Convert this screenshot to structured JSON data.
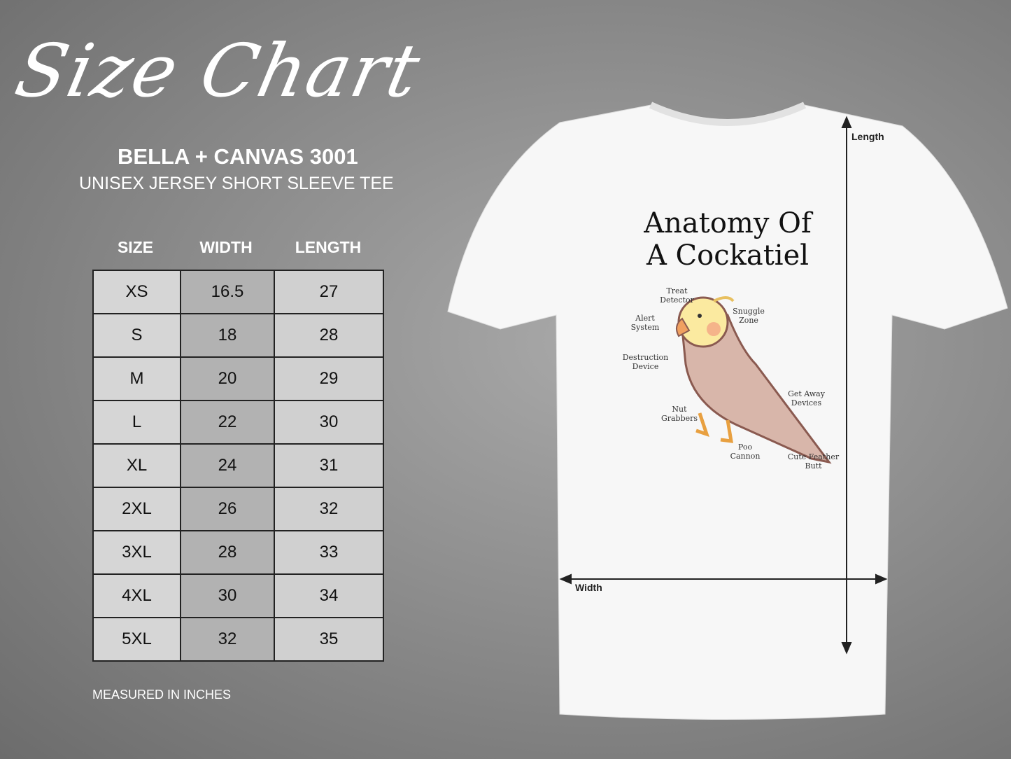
{
  "heading": "Size Chart",
  "brand": "BELLA + CANVAS 3001",
  "subtitle": "UNISEX JERSEY SHORT SLEEVE TEE",
  "columns": [
    "SIZE",
    "WIDTH",
    "LENGTH"
  ],
  "rows": [
    [
      "XS",
      "16.5",
      "27"
    ],
    [
      "S",
      "18",
      "28"
    ],
    [
      "M",
      "20",
      "29"
    ],
    [
      "L",
      "22",
      "30"
    ],
    [
      "XL",
      "24",
      "31"
    ],
    [
      "2XL",
      "26",
      "32"
    ],
    [
      "3XL",
      "28",
      "33"
    ],
    [
      "4XL",
      "30",
      "34"
    ],
    [
      "5XL",
      "32",
      "35"
    ]
  ],
  "note": "MEASURED IN INCHES",
  "shirt": {
    "color": "#f7f7f7",
    "length_label": "Length",
    "width_label": "Width",
    "design": {
      "title_line1": "Anatomy Of",
      "title_line2": "A Cockatiel",
      "labels": [
        "Treat Detector",
        "Snuggle Zone",
        "Alert System",
        "Destruction Device",
        "Get Away Devices",
        "Nut Grabbers",
        "Poo Cannon",
        "Cute Feather Butt"
      ]
    }
  }
}
